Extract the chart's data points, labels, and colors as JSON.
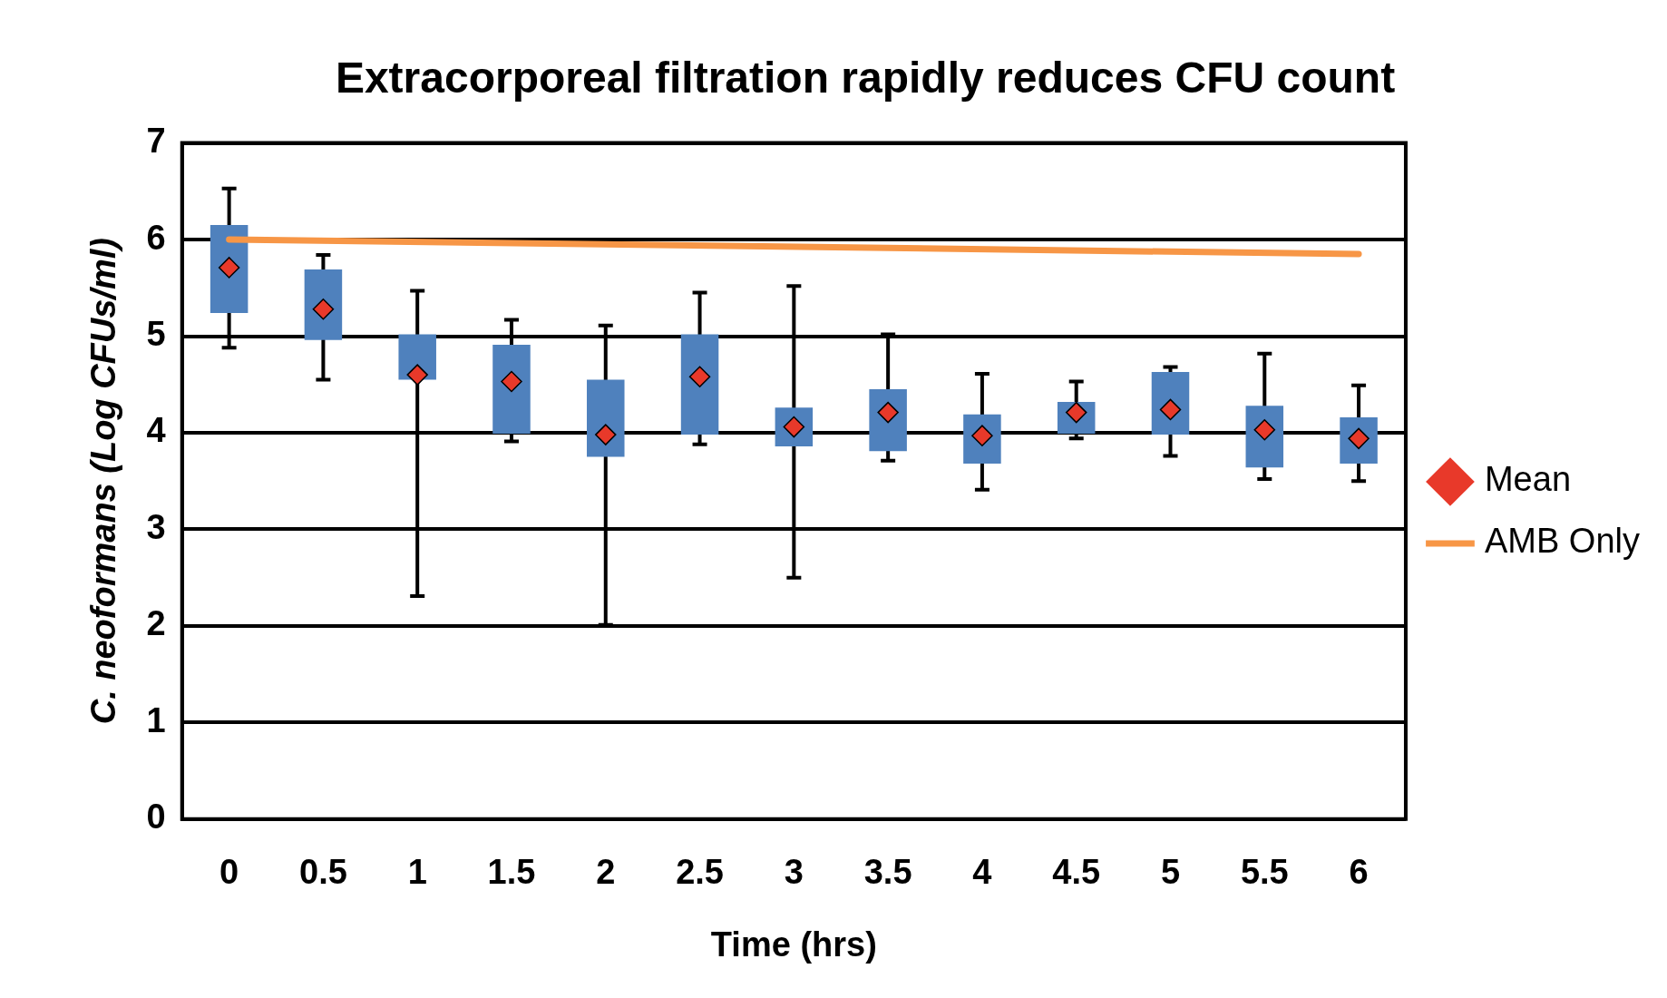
{
  "chart_data": {
    "type": "box",
    "title": "Extracorporeal filtration rapidly reduces CFU count",
    "xlabel": "Time (hrs)",
    "ylabel": "C. neoformans (Log CFUs/ml)",
    "categories": [
      "0",
      "0.5",
      "1",
      "1.5",
      "2",
      "2.5",
      "3",
      "3.5",
      "4",
      "4.5",
      "5",
      "5.5",
      "6"
    ],
    "color": "#4f81bd",
    "boxes": [
      {
        "low": 4.88,
        "q1": 5.24,
        "q3": 6.15,
        "high": 6.53
      },
      {
        "low": 4.55,
        "q1": 4.96,
        "q3": 5.69,
        "high": 5.84
      },
      {
        "low": 2.31,
        "q1": 4.55,
        "q3": 5.02,
        "high": 5.47
      },
      {
        "low": 3.91,
        "q1": 3.99,
        "q3": 4.91,
        "high": 5.17
      },
      {
        "low": 2.01,
        "q1": 3.75,
        "q3": 4.55,
        "high": 5.11
      },
      {
        "low": 3.88,
        "q1": 3.98,
        "q3": 5.02,
        "high": 5.45
      },
      {
        "low": 2.5,
        "q1": 3.86,
        "q3": 4.26,
        "high": 5.52
      },
      {
        "low": 3.71,
        "q1": 3.81,
        "q3": 4.45,
        "high": 5.02
      },
      {
        "low": 3.41,
        "q1": 3.68,
        "q3": 4.19,
        "high": 4.61
      },
      {
        "low": 3.94,
        "q1": 3.99,
        "q3": 4.32,
        "high": 4.53
      },
      {
        "low": 3.76,
        "q1": 3.98,
        "q3": 4.63,
        "high": 4.68
      },
      {
        "low": 3.52,
        "q1": 3.64,
        "q3": 4.28,
        "high": 4.82
      },
      {
        "low": 3.5,
        "q1": 3.68,
        "q3": 4.16,
        "high": 4.49
      }
    ],
    "series": [
      {
        "name": "Mean",
        "type": "scatter",
        "color": "#e8392a",
        "marker": "diamond",
        "x": [
          "0",
          "0.5",
          "1",
          "1.5",
          "2",
          "2.5",
          "3",
          "3.5",
          "4",
          "4.5",
          "5",
          "5.5",
          "6"
        ],
        "values": [
          5.71,
          5.28,
          4.6,
          4.53,
          3.98,
          4.58,
          4.06,
          4.21,
          3.97,
          4.21,
          4.24,
          4.03,
          3.94
        ]
      },
      {
        "name": "AMB Only",
        "type": "line",
        "color": "#f79646",
        "x": [
          "0",
          "6"
        ],
        "values": [
          6.0,
          5.85
        ]
      }
    ],
    "ylim": [
      0,
      7
    ],
    "yticks": [
      0,
      1,
      2,
      3,
      4,
      5,
      6,
      7
    ],
    "grid": "y",
    "legend": "right"
  }
}
